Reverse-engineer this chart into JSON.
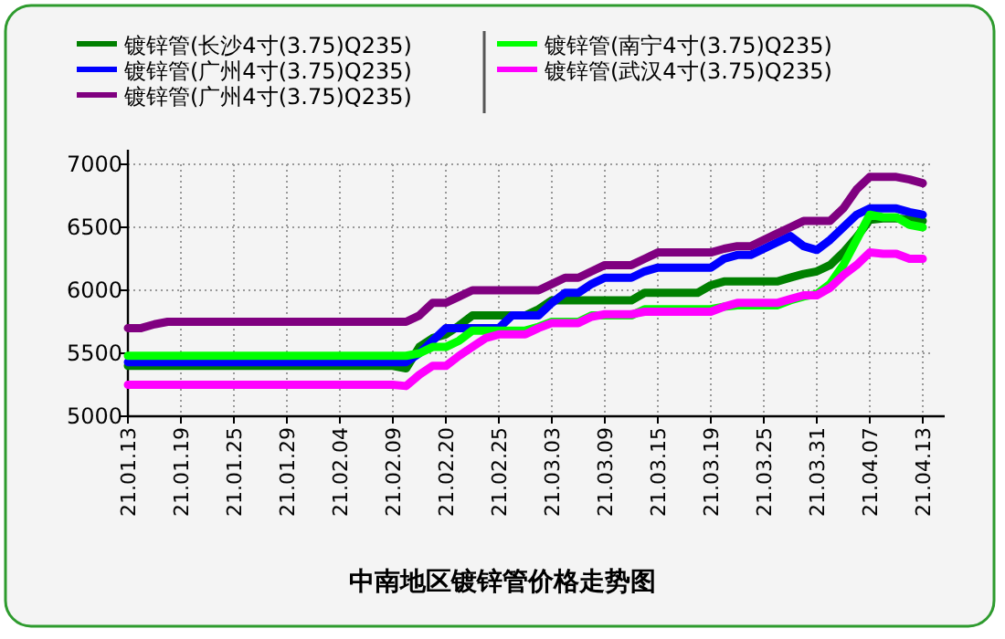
{
  "chart_data": {
    "type": "line",
    "title": "中南地区镀锌管价格走势图",
    "categories": [
      "21.01.13",
      null,
      null,
      null,
      "21.01.19",
      null,
      null,
      null,
      "21.01.25",
      null,
      null,
      null,
      "21.01.29",
      null,
      null,
      null,
      "21.02.04",
      null,
      null,
      null,
      "21.02.09",
      null,
      null,
      null,
      "21.02.20",
      null,
      null,
      null,
      "21.02.25",
      null,
      null,
      null,
      "21.03.03",
      null,
      null,
      null,
      "21.03.09",
      null,
      null,
      null,
      "21.03.15",
      null,
      null,
      null,
      "21.03.19",
      null,
      null,
      null,
      "21.03.25",
      null,
      null,
      null,
      "21.03.31",
      null,
      null,
      null,
      "21.04.07",
      null,
      null,
      null,
      "21.04.13"
    ],
    "series": [
      {
        "name": "镀锌管(长沙4寸(3.75)Q235)",
        "color": "#008000",
        "values": [
          5400,
          5400,
          5400,
          5400,
          5400,
          5400,
          5400,
          5400,
          5400,
          5400,
          5400,
          5400,
          5400,
          5400,
          5400,
          5400,
          5400,
          5400,
          5400,
          5400,
          5400,
          5380,
          5550,
          5620,
          5650,
          5720,
          5800,
          5800,
          5800,
          5800,
          5800,
          5850,
          5920,
          5920,
          5920,
          5920,
          5920,
          5920,
          5920,
          5980,
          5980,
          5980,
          5980,
          5980,
          6040,
          6070,
          6070,
          6070,
          6070,
          6070,
          6100,
          6130,
          6150,
          6200,
          6300,
          6420,
          6560,
          6570,
          6570,
          6560,
          6550
        ]
      },
      {
        "name": "镀锌管(广州4寸(3.75)Q235)",
        "color": "#0000ff",
        "values": [
          5430,
          5430,
          5430,
          5430,
          5430,
          5430,
          5430,
          5430,
          5430,
          5430,
          5430,
          5430,
          5430,
          5430,
          5430,
          5430,
          5430,
          5430,
          5430,
          5430,
          5430,
          5430,
          5500,
          5600,
          5700,
          5700,
          5700,
          5700,
          5700,
          5800,
          5800,
          5800,
          5900,
          5980,
          5980,
          6050,
          6100,
          6100,
          6100,
          6150,
          6180,
          6180,
          6180,
          6180,
          6180,
          6250,
          6280,
          6280,
          6330,
          6380,
          6430,
          6350,
          6320,
          6400,
          6500,
          6600,
          6650,
          6650,
          6650,
          6620,
          6600
        ]
      },
      {
        "name": "镀锌管(广州4寸(3.75)Q235)",
        "color": "#800080",
        "values": [
          5700,
          5700,
          5730,
          5750,
          5750,
          5750,
          5750,
          5750,
          5750,
          5750,
          5750,
          5750,
          5750,
          5750,
          5750,
          5750,
          5750,
          5750,
          5750,
          5750,
          5750,
          5750,
          5800,
          5900,
          5900,
          5950,
          6000,
          6000,
          6000,
          6000,
          6000,
          6000,
          6050,
          6100,
          6100,
          6150,
          6200,
          6200,
          6200,
          6250,
          6300,
          6300,
          6300,
          6300,
          6300,
          6330,
          6350,
          6350,
          6400,
          6450,
          6500,
          6550,
          6550,
          6550,
          6650,
          6800,
          6900,
          6900,
          6900,
          6880,
          6850
        ]
      },
      {
        "name": "镀锌管(南宁4寸(3.75)Q235)",
        "color": "#00ff00",
        "values": [
          5480,
          5480,
          5480,
          5480,
          5480,
          5480,
          5480,
          5480,
          5480,
          5480,
          5480,
          5480,
          5480,
          5480,
          5480,
          5480,
          5480,
          5480,
          5480,
          5480,
          5480,
          5480,
          5500,
          5550,
          5550,
          5600,
          5680,
          5680,
          5680,
          5680,
          5680,
          5710,
          5750,
          5750,
          5750,
          5800,
          5800,
          5800,
          5800,
          5850,
          5850,
          5850,
          5850,
          5850,
          5850,
          5870,
          5880,
          5880,
          5880,
          5880,
          5920,
          5950,
          5970,
          6050,
          6200,
          6400,
          6600,
          6580,
          6580,
          6520,
          6500
        ]
      },
      {
        "name": "镀锌管(武汉4寸(3.75)Q235)",
        "color": "#ff00ff",
        "values": [
          5250,
          5250,
          5250,
          5250,
          5250,
          5250,
          5250,
          5250,
          5250,
          5250,
          5250,
          5250,
          5250,
          5250,
          5250,
          5250,
          5250,
          5250,
          5250,
          5250,
          5250,
          5240,
          5330,
          5400,
          5400,
          5480,
          5550,
          5620,
          5650,
          5650,
          5650,
          5700,
          5740,
          5740,
          5740,
          5790,
          5810,
          5810,
          5810,
          5830,
          5830,
          5830,
          5830,
          5830,
          5830,
          5870,
          5900,
          5900,
          5900,
          5900,
          5930,
          5960,
          5960,
          6020,
          6120,
          6200,
          6300,
          6290,
          6290,
          6250,
          6250
        ]
      }
    ],
    "ylim": [
      5000,
      7000
    ],
    "yticks": [
      5000,
      5500,
      6000,
      6500,
      7000
    ],
    "grid": true,
    "legend": "top",
    "line_style": "solid",
    "marker": "none"
  }
}
